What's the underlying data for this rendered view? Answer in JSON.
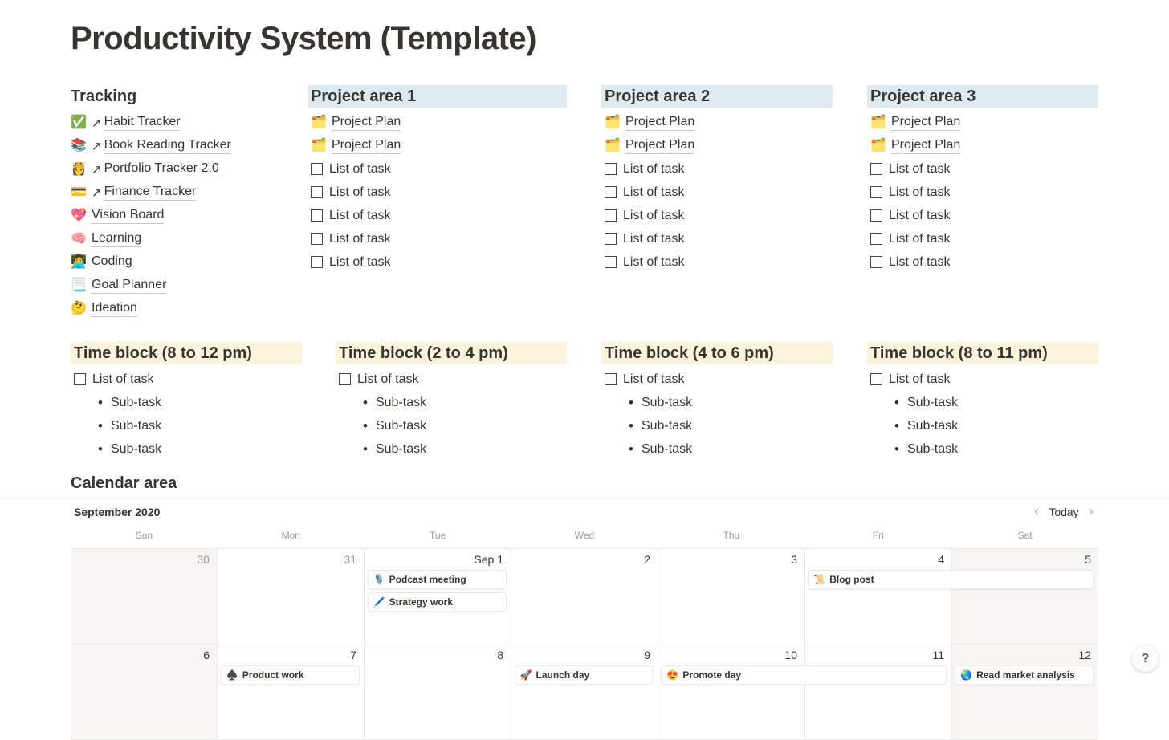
{
  "page": {
    "title": "Productivity System (Template)"
  },
  "tracking": {
    "heading": "Tracking",
    "external_arrow": "↗",
    "items": [
      {
        "emoji": "✅",
        "icon_name": "check-mark-icon",
        "label": "Habit Tracker",
        "external": true
      },
      {
        "emoji": "📚",
        "icon_name": "books-icon",
        "label": "Book Reading Tracker",
        "external": true
      },
      {
        "emoji": "👸",
        "icon_name": "princess-icon",
        "label": "Portfolio Tracker 2.0",
        "external": true
      },
      {
        "emoji": "💳",
        "icon_name": "credit-card-icon",
        "label": "Finance Tracker",
        "external": true
      },
      {
        "emoji": "💖",
        "icon_name": "sparkling-heart-icon",
        "label": "Vision Board",
        "external": false
      },
      {
        "emoji": "🧠",
        "icon_name": "brain-icon",
        "label": "Learning",
        "external": false
      },
      {
        "emoji": "👩‍💻",
        "icon_name": "woman-technologist-icon",
        "label": "Coding",
        "external": false
      },
      {
        "emoji": "📃",
        "icon_name": "page-icon",
        "label": "Goal Planner",
        "external": false
      },
      {
        "emoji": "🤔",
        "icon_name": "thinking-face-icon",
        "label": "Ideation",
        "external": false
      }
    ]
  },
  "project_areas": {
    "headings": [
      "Project area 1",
      "Project area 2",
      "Project area 3"
    ],
    "plan_emoji": "🗂️",
    "plan_icon_name": "card-index-dividers-icon",
    "plan_label": "Project Plan",
    "plan_count": 2,
    "task_label": "List of task",
    "task_count": 5
  },
  "time_blocks": {
    "headings": [
      "Time block (8 to 12 pm)",
      "Time block (2 to 4 pm)",
      "Time block (4 to 6 pm)",
      "Time block (8 to 11 pm)"
    ],
    "task_label": "List of task",
    "subtask_label": "Sub-task",
    "subtask_count": 3
  },
  "calendar": {
    "heading": "Calendar area",
    "month_label": "September 2020",
    "nav": {
      "prev_icon": "‹",
      "today_label": "Today",
      "next_icon": "›"
    },
    "weekdays": [
      "Sun",
      "Mon",
      "Tue",
      "Wed",
      "Thu",
      "Fri",
      "Sat"
    ],
    "weeks": [
      {
        "dates": [
          "30",
          "31",
          "Sep 1",
          "2",
          "3",
          "4",
          "5"
        ],
        "muted": [
          true,
          true,
          false,
          false,
          false,
          false,
          false
        ],
        "events": [
          {
            "emoji": "🎙️",
            "icon_name": "studio-microphone-icon",
            "label": "Podcast meeting",
            "day_index": 2,
            "span": 1,
            "slot": 0
          },
          {
            "emoji": "🖊️",
            "icon_name": "pen-icon",
            "label": "Strategy work",
            "day_index": 2,
            "span": 1,
            "slot": 1
          },
          {
            "emoji": "📜",
            "icon_name": "scroll-icon",
            "label": "Blog post",
            "day_index": 5,
            "span": 2,
            "slot": 0
          }
        ]
      },
      {
        "dates": [
          "6",
          "7",
          "8",
          "9",
          "10",
          "11",
          "12"
        ],
        "muted": [
          false,
          false,
          false,
          false,
          false,
          false,
          false
        ],
        "events": [
          {
            "emoji": "♠️",
            "icon_name": "spade-suit-icon",
            "label": "Product work",
            "day_index": 1,
            "span": 1,
            "slot": 0
          },
          {
            "emoji": "🚀",
            "icon_name": "rocket-icon",
            "label": "Launch day",
            "day_index": 3,
            "span": 1,
            "slot": 0
          },
          {
            "emoji": "😍",
            "icon_name": "heart-eyes-icon",
            "label": "Promote day",
            "day_index": 4,
            "span": 2,
            "slot": 0
          },
          {
            "emoji": "🌏",
            "icon_name": "globe-icon",
            "label": "Read market analysis",
            "day_index": 6,
            "span": 1,
            "slot": 0
          }
        ]
      }
    ]
  },
  "help": {
    "label": "?"
  },
  "colors": {
    "heading_blue_bg": "#ddebf1",
    "heading_yellow_bg": "#fbf3db",
    "weekend_bg": "#f7f6f3",
    "grid_border": "#e9e9e7",
    "text": "#37352f",
    "muted_text": "#9b9a97"
  }
}
